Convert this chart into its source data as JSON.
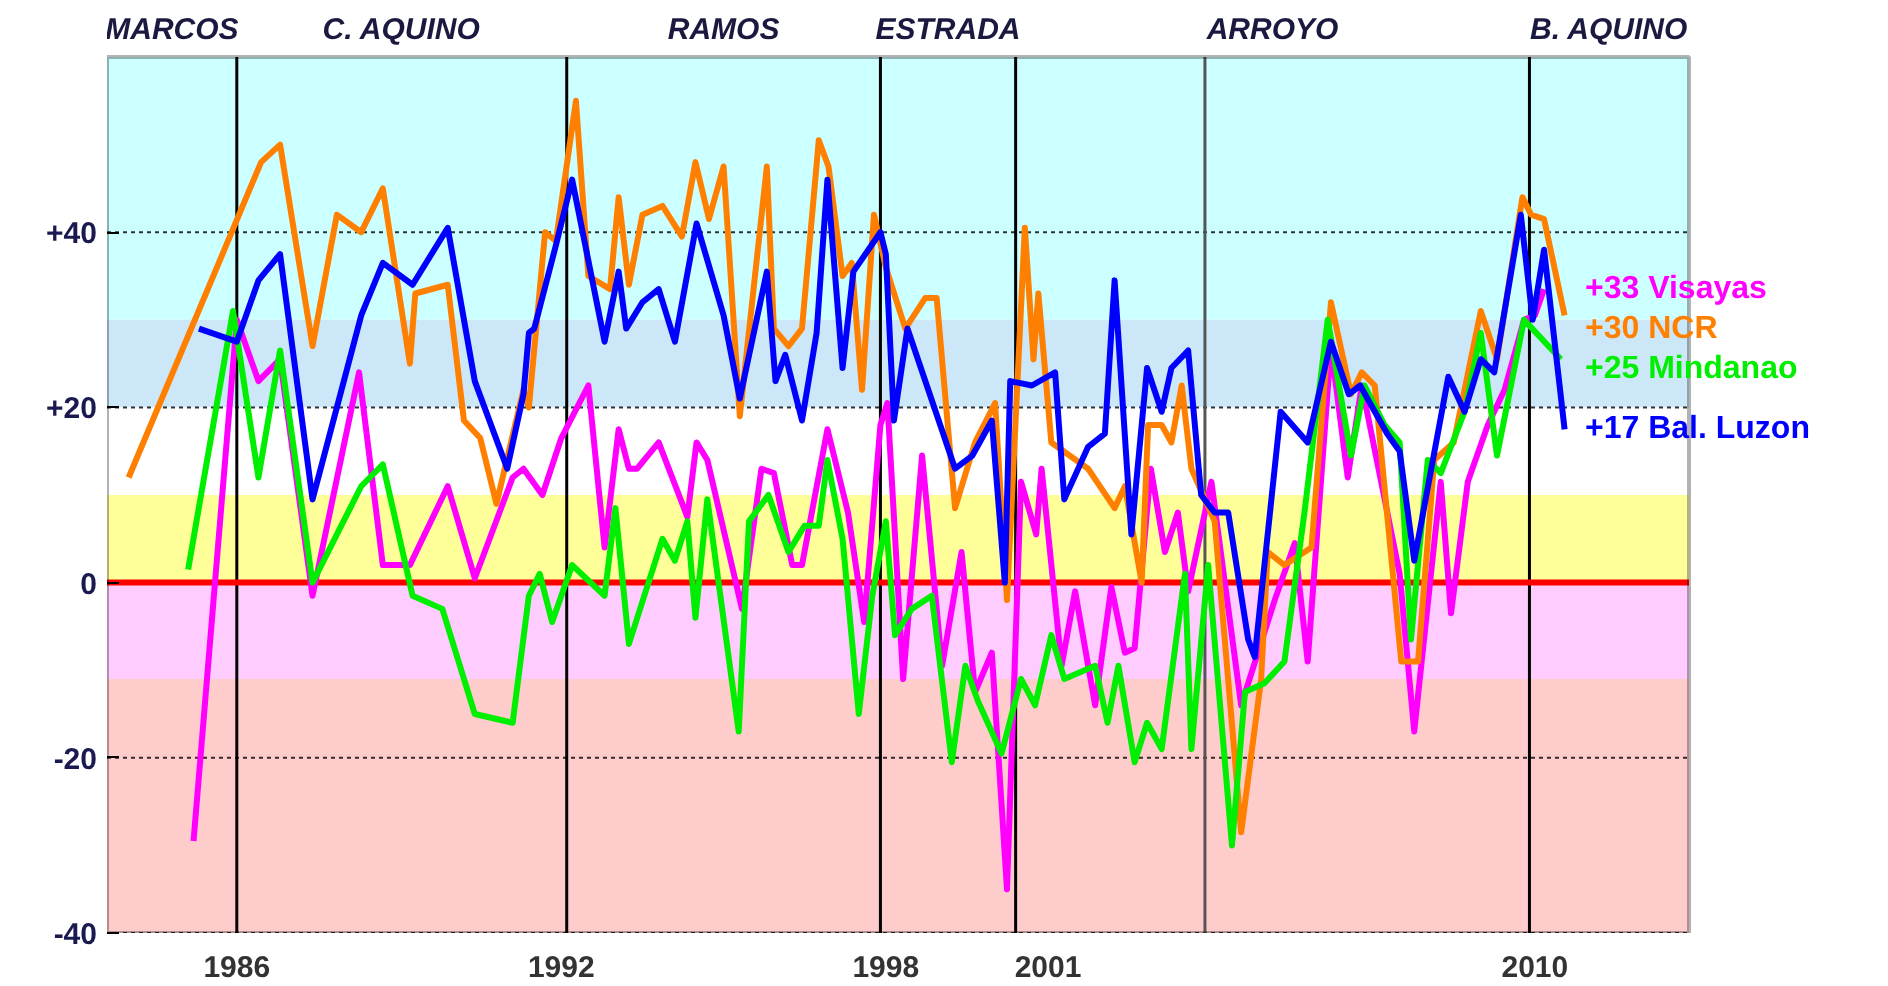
{
  "chart_data": {
    "type": "line",
    "xlim": [
      1983.6,
      2012.85
    ],
    "ylim": [
      -40,
      60
    ],
    "xticks": [
      1986,
      1992,
      1998,
      2001,
      2010
    ],
    "yticks": [
      {
        "value": -40,
        "label": "-40"
      },
      {
        "value": -20,
        "label": "-20"
      },
      {
        "value": 0,
        "label": "0"
      },
      {
        "value": 20,
        "label": "+20"
      },
      {
        "value": 40,
        "label": "+40"
      }
    ],
    "grid": "y",
    "line_style": "solid",
    "marker": "none",
    "series": [
      {
        "name": "+33 Visayas",
        "color": "#ff00ff",
        "x": [
          1985.2,
          1986.0,
          1986.4,
          1986.8,
          1987.4,
          1988.26,
          1988.7,
          1989.2,
          1989.9,
          1990.4,
          1991.1,
          1991.3,
          1991.65,
          1992.0,
          1992.5,
          1992.8,
          1993.06,
          1993.25,
          1993.4,
          1993.8,
          1994.33,
          1994.5,
          1994.7,
          1995.34,
          1995.7,
          1995.93,
          1996.27,
          1996.45,
          1996.92,
          1997.3,
          1997.6,
          1997.9,
          1998.03,
          1998.32,
          1998.67,
          1999.04,
          1999.4,
          1999.65,
          1999.96,
          2000.24,
          2000.5,
          2000.78,
          2000.88,
          2001.25,
          2001.5,
          2001.87,
          2002.17,
          2002.42,
          2002.6,
          2002.9,
          2003.16,
          2003.4,
          2003.59,
          2004.02,
          2004.57,
          2005.19,
          2005.56,
          2005.8,
          2006.23,
          2006.54,
          2006.8,
          2007.5,
          2007.77,
          2008.26,
          2008.45,
          2008.76,
          2009.13,
          2009.44,
          2009.8,
          2010.0,
          2010.17
        ],
        "values": [
          -29.5,
          30,
          23,
          25.5,
          -1.5,
          24,
          2,
          2,
          11,
          0.5,
          12,
          13,
          10,
          16.5,
          22.5,
          4,
          17.5,
          13,
          13,
          16,
          7.5,
          16,
          14,
          -3,
          13,
          12.5,
          2,
          2,
          17.5,
          8,
          -4.5,
          18,
          20.5,
          -11,
          14.5,
          -9.5,
          3.5,
          -12.5,
          -8,
          -35,
          11.5,
          5.5,
          13,
          -9.5,
          -1,
          -14,
          -0.5,
          -8,
          -7.5,
          13,
          3.5,
          8,
          -1,
          11.5,
          -14,
          -2,
          4.5,
          -9,
          27,
          12,
          22.5,
          1,
          -17,
          11.5,
          -3.5,
          11.5,
          18,
          22,
          30,
          30.5,
          33.5
        ]
      },
      {
        "name": "+30 NCR",
        "color": "#ff8000",
        "x": [
          1984.0,
          1986.45,
          1986.8,
          1987.4,
          1987.85,
          1988.3,
          1988.7,
          1989.2,
          1989.3,
          1989.9,
          1990.2,
          1990.5,
          1990.8,
          1991.3,
          1991.4,
          1991.7,
          1991.9,
          1992.27,
          1992.5,
          1992.9,
          1993.06,
          1993.25,
          1993.5,
          1993.87,
          1994.23,
          1994.48,
          1994.73,
          1995.0,
          1995.3,
          1995.8,
          1995.93,
          1996.2,
          1996.45,
          1996.76,
          1996.94,
          1997.2,
          1997.37,
          1997.56,
          1997.78,
          1998.0,
          1998.36,
          1998.73,
          1998.94,
          1999.28,
          1999.65,
          2000.02,
          2000.24,
          2000.57,
          2000.73,
          2000.82,
          2001.06,
          2001.74,
          2002.23,
          2002.42,
          2002.73,
          2002.85,
          2003.1,
          2003.28,
          2003.47,
          2003.65,
          2004.08,
          2004.57,
          2004.94,
          2005.06,
          2005.37,
          2005.87,
          2006.23,
          2006.6,
          2006.8,
          2007.04,
          2007.53,
          2007.84,
          2008.14,
          2008.5,
          2009.0,
          2009.3,
          2009.77,
          2009.93,
          2010.17,
          2010.55
        ],
        "values": [
          12,
          48,
          50,
          27,
          42,
          40,
          45,
          25,
          33,
          34,
          18.5,
          16.5,
          9,
          22,
          20,
          40,
          39,
          55,
          35,
          33.5,
          44,
          34,
          42,
          43,
          39.5,
          48,
          41.5,
          47.5,
          19,
          47.5,
          29,
          27,
          29,
          50.5,
          47.5,
          35,
          36.5,
          22,
          42,
          36,
          29,
          32.5,
          32.5,
          8.5,
          16,
          20.5,
          -2,
          40.5,
          25.5,
          33,
          16,
          13,
          8.5,
          11,
          0,
          18,
          18,
          16,
          22.5,
          13,
          7,
          -28.5,
          -11,
          3.5,
          2,
          4,
          32,
          21.5,
          24,
          22.5,
          -9,
          -9,
          14,
          16,
          31,
          25.5,
          44,
          42,
          41.5,
          30.5
        ]
      },
      {
        "name": "+25 Mindanao",
        "color": "#00ee00",
        "x": [
          1985.1,
          1985.93,
          1986.4,
          1986.8,
          1987.4,
          1988.3,
          1988.7,
          1989.25,
          1989.8,
          1990.4,
          1991.1,
          1991.4,
          1991.6,
          1991.83,
          1992.2,
          1992.8,
          1993.0,
          1993.25,
          1993.87,
          1994.1,
          1994.33,
          1994.48,
          1994.7,
          1995.28,
          1995.47,
          1995.83,
          1996.2,
          1996.5,
          1996.76,
          1996.92,
          1997.2,
          1997.5,
          1997.75,
          1998.0,
          1998.17,
          1998.48,
          1998.85,
          1999.22,
          1999.47,
          1999.7,
          2000.14,
          2000.5,
          2000.76,
          2001.06,
          2001.3,
          2001.87,
          2002.1,
          2002.3,
          2002.6,
          2002.83,
          2003.1,
          2003.53,
          2003.65,
          2003.96,
          2004.4,
          2004.64,
          2005.0,
          2005.37,
          2005.74,
          2006.17,
          2006.6,
          2006.85,
          2007.22,
          2007.5,
          2007.71,
          2008.02,
          2008.26,
          2008.7,
          2009.0,
          2009.3,
          2009.8,
          2010.48
        ],
        "values": [
          1.5,
          31,
          12,
          26.5,
          0,
          11,
          13.5,
          -1.5,
          -3,
          -15,
          -16,
          -1.5,
          1,
          -4.5,
          2,
          -1.5,
          8.5,
          -7,
          5,
          2.5,
          7,
          -4,
          9.5,
          -17,
          7,
          10,
          3.5,
          6.5,
          6.5,
          14,
          5,
          -15,
          -1.5,
          7,
          -6,
          -3,
          -1.5,
          -20.5,
          -9.5,
          -13.5,
          -19.5,
          -11,
          -14,
          -6,
          -11,
          -9.5,
          -16,
          -9.5,
          -20.5,
          -16,
          -19,
          1,
          -19,
          2,
          -30,
          -12.5,
          -11.5,
          -9,
          8,
          30,
          14.5,
          22.5,
          18,
          16,
          -6.5,
          14,
          12.5,
          19.5,
          28.5,
          14.5,
          30,
          25.5
        ]
      },
      {
        "name": "+17 Bal. Luzon",
        "color": "#0000ff",
        "x": [
          1985.3,
          1986.0,
          1986.4,
          1986.8,
          1987.4,
          1988.3,
          1988.7,
          1989.25,
          1989.9,
          1990.4,
          1991.0,
          1991.3,
          1991.4,
          1991.5,
          1991.9,
          1992.2,
          1992.8,
          1993.06,
          1993.2,
          1993.5,
          1993.8,
          1994.1,
          1994.5,
          1995.0,
          1995.3,
          1995.8,
          1995.96,
          1996.14,
          1996.45,
          1996.72,
          1996.92,
          1997.2,
          1997.4,
          1997.9,
          1998.0,
          1998.15,
          1998.4,
          1999.28,
          1999.6,
          1999.96,
          2000.2,
          2000.3,
          2000.7,
          2001.13,
          2001.3,
          2001.74,
          2002.05,
          2002.23,
          2002.54,
          2002.83,
          2003.1,
          2003.28,
          2003.59,
          2003.83,
          2004.08,
          2004.33,
          2004.7,
          2004.82,
          2005.3,
          2005.8,
          2006.23,
          2006.56,
          2006.77,
          2007.27,
          2007.5,
          2007.77,
          2008.4,
          2008.7,
          2009.0,
          2009.25,
          2009.74,
          2009.96,
          2010.17,
          2010.55
        ],
        "values": [
          29,
          27.5,
          34.5,
          37.5,
          9.5,
          30.5,
          36.5,
          34,
          40.5,
          23,
          13,
          21.5,
          28.5,
          29,
          38.5,
          46,
          27.5,
          35.5,
          29,
          32,
          33.5,
          27.5,
          41,
          30.5,
          21,
          35.5,
          23,
          26,
          18.5,
          28.5,
          46,
          24.5,
          35.5,
          40,
          37.5,
          18.5,
          29,
          13,
          14.5,
          18.5,
          0,
          23,
          22.5,
          24,
          9.5,
          15.5,
          17,
          34.5,
          5.5,
          24.5,
          19.5,
          24.5,
          26.5,
          10,
          8,
          8,
          -6.5,
          -8.5,
          19.5,
          16,
          27.5,
          21.5,
          22.5,
          17,
          15,
          2.5,
          23.5,
          19.5,
          25.5,
          24,
          42,
          30,
          38,
          17.5
        ]
      }
    ],
    "bands": [
      {
        "axis": "y",
        "from": 30,
        "to": 60,
        "color": "#ccffff"
      },
      {
        "axis": "y",
        "from": 20,
        "to": 30,
        "color": "#cce8f8"
      },
      {
        "axis": "y",
        "from": 10,
        "to": 20,
        "color": "#ffffff"
      },
      {
        "axis": "y",
        "from": 0,
        "to": 10,
        "color": "#ffff99"
      },
      {
        "axis": "y",
        "from": -11,
        "to": 0,
        "color": "#ffccff"
      },
      {
        "axis": "y",
        "from": -40,
        "to": -11,
        "color": "#ffcccc"
      }
    ],
    "annotations": [
      "MARCOS",
      "C. AQUINO",
      "RAMOS",
      "ESTRADA",
      "ARROYO",
      "B. AQUINO"
    ],
    "ref_lines": [
      {
        "axis": "x",
        "value": 1986.0,
        "color": "#000000"
      },
      {
        "axis": "x",
        "value": 1992.1,
        "color": "#000000"
      },
      {
        "axis": "x",
        "value": 1997.9,
        "color": "#000000"
      },
      {
        "axis": "x",
        "value": 2000.4,
        "color": "#000000"
      },
      {
        "axis": "x",
        "value": 2003.9,
        "color": "#555555"
      },
      {
        "axis": "x",
        "value": 2009.9,
        "color": "#000000"
      },
      {
        "axis": "y",
        "value": 0,
        "color": "#ff0000"
      }
    ]
  }
}
